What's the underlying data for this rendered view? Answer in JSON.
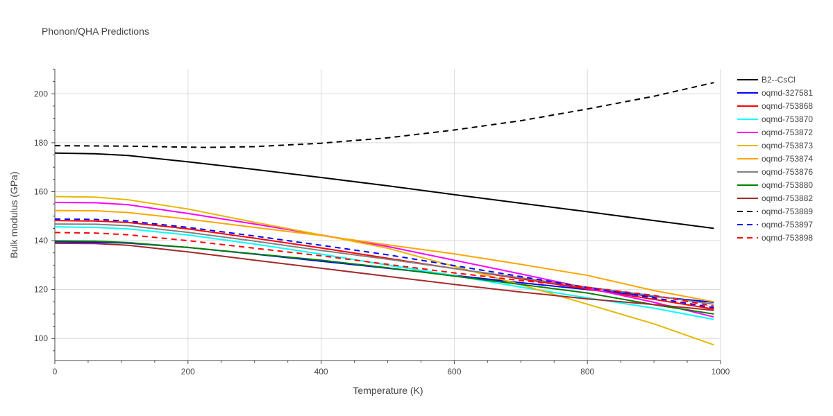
{
  "chart_data": {
    "type": "line",
    "title": "Phonon/QHA Predictions",
    "xlabel": "Temperature (K)",
    "ylabel": "Bulk modulus (GPa)",
    "xlim": [
      0,
      1000
    ],
    "ylim": [
      91,
      210
    ],
    "xticks": [
      0,
      200,
      400,
      600,
      800,
      1000
    ],
    "yticks": [
      100,
      120,
      140,
      160,
      180,
      200
    ],
    "grid": true,
    "legend_position": "right",
    "series": [
      {
        "name": "B2--CsCl",
        "color": "#000000",
        "dash": "solid",
        "x": [
          0,
          60,
          110,
          200,
          300,
          400,
          500,
          600,
          700,
          800,
          900,
          990
        ],
        "y": [
          175.8,
          175.5,
          174.8,
          172.2,
          169.1,
          165.8,
          162.4,
          158.8,
          155.3,
          151.8,
          148.2,
          145.0
        ]
      },
      {
        "name": "oqmd-327581",
        "color": "#0000ff",
        "dash": "solid",
        "x": [
          0,
          60,
          110,
          200,
          300,
          400,
          500,
          600,
          700,
          800,
          900,
          990
        ],
        "y": [
          139.5,
          139.4,
          139.0,
          137.2,
          134.5,
          131.6,
          128.7,
          125.8,
          122.8,
          120.0,
          117.2,
          114.8
        ]
      },
      {
        "name": "oqmd-753868",
        "color": "#ff0000",
        "dash": "solid",
        "x": [
          0,
          60,
          110,
          200,
          300,
          400,
          500,
          600,
          700,
          800,
          900,
          990
        ],
        "y": [
          148.2,
          148.0,
          147.4,
          144.8,
          141.0,
          137.0,
          132.8,
          128.6,
          124.4,
          120.2,
          116.0,
          112.0
        ]
      },
      {
        "name": "oqmd-753870",
        "color": "#00ffff",
        "dash": "solid",
        "x": [
          0,
          60,
          110,
          200,
          300,
          400,
          500,
          600,
          700,
          800,
          900,
          990
        ],
        "y": [
          145.6,
          145.4,
          144.8,
          142.3,
          138.6,
          134.5,
          130.0,
          125.7,
          121.0,
          116.6,
          112.4,
          107.8
        ]
      },
      {
        "name": "oqmd-753872",
        "color": "#ff00ff",
        "dash": "solid",
        "x": [
          0,
          60,
          110,
          200,
          300,
          400,
          500,
          600,
          700,
          800,
          900,
          990
        ],
        "y": [
          155.6,
          155.5,
          154.7,
          151.1,
          146.8,
          142.3,
          137.6,
          132.0,
          126.4,
          120.6,
          114.8,
          108.8
        ]
      },
      {
        "name": "oqmd-753873",
        "color": "#e6b800",
        "dash": "solid",
        "x": [
          0,
          60,
          110,
          200,
          300,
          400,
          500,
          600,
          700,
          800,
          900,
          990
        ],
        "y": [
          158.0,
          157.8,
          156.7,
          152.9,
          147.5,
          142.3,
          136.9,
          129.5,
          122.0,
          114.0,
          106.0,
          97.4
        ]
      },
      {
        "name": "oqmd-753874",
        "color": "#ffa500",
        "dash": "solid",
        "x": [
          0,
          60,
          110,
          200,
          300,
          400,
          500,
          600,
          700,
          800,
          900,
          990
        ],
        "y": [
          152.3,
          152.2,
          151.5,
          148.8,
          145.4,
          142.1,
          138.3,
          134.6,
          130.3,
          125.8,
          119.6,
          115.0
        ]
      },
      {
        "name": "oqmd-753876",
        "color": "#808080",
        "dash": "solid",
        "x": [
          0,
          60,
          110,
          200,
          300,
          400,
          500,
          600,
          700,
          800,
          900,
          990
        ],
        "y": [
          146.8,
          146.7,
          146.1,
          143.4,
          139.8,
          136.0,
          132.4,
          128.6,
          124.8,
          121.0,
          117.4,
          114.0
        ]
      },
      {
        "name": "oqmd-753880",
        "color": "#008000",
        "dash": "solid",
        "x": [
          0,
          60,
          110,
          200,
          300,
          400,
          500,
          600,
          700,
          800,
          900,
          990
        ],
        "y": [
          139.9,
          139.8,
          139.2,
          137.2,
          134.6,
          132.0,
          128.9,
          125.5,
          122.1,
          118.6,
          113.8,
          110.0
        ]
      },
      {
        "name": "oqmd-753882",
        "color": "#a52a2a",
        "dash": "solid",
        "x": [
          0,
          60,
          110,
          200,
          300,
          400,
          500,
          600,
          700,
          800,
          900,
          990
        ],
        "y": [
          138.9,
          138.8,
          138.1,
          135.4,
          132.0,
          128.7,
          125.4,
          122.1,
          119.0,
          116.2,
          113.9,
          111.5
        ]
      },
      {
        "name": "oqmd-753889",
        "color": "#000000",
        "dash": "dash",
        "x": [
          0,
          60,
          110,
          200,
          230,
          300,
          400,
          500,
          600,
          700,
          800,
          900,
          990
        ],
        "y": [
          178.8,
          178.7,
          178.6,
          178.2,
          178.1,
          178.4,
          179.8,
          182.0,
          185.2,
          189.0,
          193.8,
          199.0,
          204.6
        ]
      },
      {
        "name": "oqmd-753897",
        "color": "#0000ff",
        "dash": "dash",
        "x": [
          0,
          60,
          110,
          200,
          300,
          400,
          500,
          600,
          700,
          800,
          900,
          990
        ],
        "y": [
          148.8,
          148.7,
          148.0,
          145.4,
          141.9,
          138.1,
          134.2,
          129.8,
          125.3,
          120.8,
          116.6,
          112.6
        ]
      },
      {
        "name": "oqmd-753898",
        "color": "#ff0000",
        "dash": "dash",
        "x": [
          0,
          60,
          110,
          200,
          300,
          400,
          500,
          600,
          700,
          800,
          900,
          990
        ],
        "y": [
          143.3,
          143.1,
          142.4,
          140.0,
          136.9,
          133.8,
          130.3,
          126.8,
          123.7,
          120.9,
          117.6,
          113.2
        ]
      }
    ]
  }
}
